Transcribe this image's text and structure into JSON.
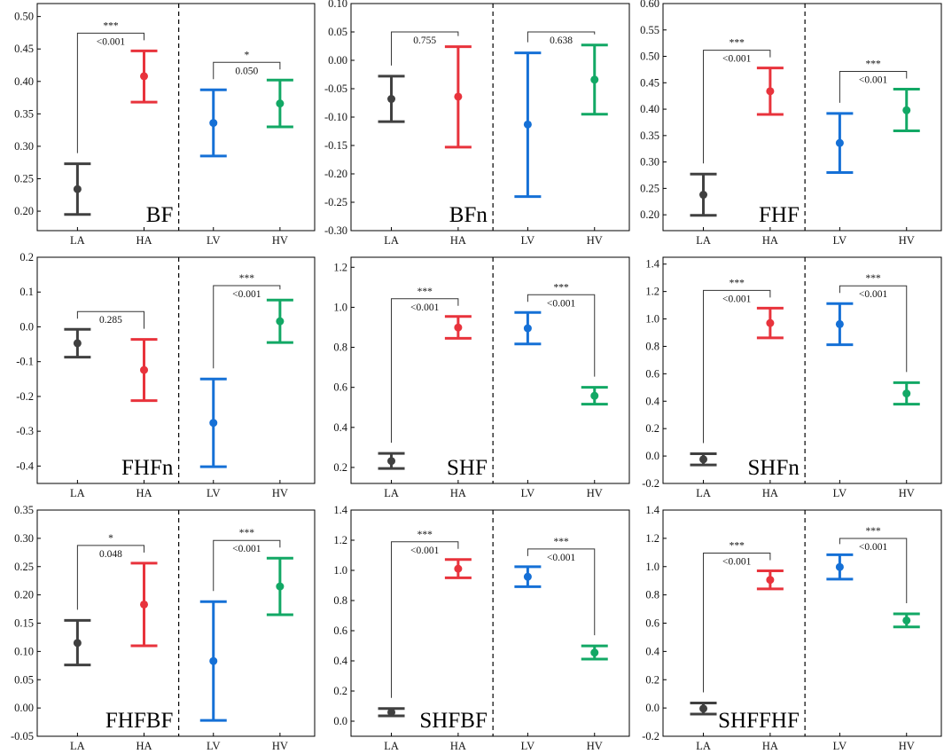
{
  "chart_data": [
    {
      "type": "errorbar",
      "label": "BF",
      "ylim": [
        0.17,
        0.52
      ],
      "ticks": [
        "0.20",
        "0.25",
        "0.30",
        "0.35",
        "0.40",
        "0.45",
        "0.50"
      ],
      "categories": [
        "LA",
        "HA",
        "LV",
        "HV"
      ],
      "points": [
        {
          "category": "LA",
          "mean": 0.234,
          "lower": 0.195,
          "upper": 0.273
        },
        {
          "category": "HA",
          "mean": 0.408,
          "lower": 0.368,
          "upper": 0.447
        },
        {
          "category": "LV",
          "mean": 0.336,
          "lower": 0.285,
          "upper": 0.387
        },
        {
          "category": "HV",
          "mean": 0.366,
          "lower": 0.33,
          "upper": 0.402
        }
      ],
      "comparisons": [
        {
          "pair": [
            "LA",
            "HA"
          ],
          "stars": "***",
          "p": "<0.001"
        },
        {
          "pair": [
            "LV",
            "HV"
          ],
          "stars": "*",
          "p": "0.050"
        }
      ]
    },
    {
      "type": "errorbar",
      "label": "BFn",
      "ylim": [
        -0.3,
        0.1
      ],
      "ticks": [
        "-0.30",
        "-0.25",
        "-0.20",
        "-0.15",
        "-0.10",
        "-0.05",
        "0.00",
        "0.05",
        "0.10"
      ],
      "categories": [
        "LA",
        "HA",
        "LV",
        "HV"
      ],
      "points": [
        {
          "category": "LA",
          "mean": -0.068,
          "lower": -0.108,
          "upper": -0.028
        },
        {
          "category": "HA",
          "mean": -0.064,
          "lower": -0.153,
          "upper": 0.024
        },
        {
          "category": "LV",
          "mean": -0.113,
          "lower": -0.24,
          "upper": 0.013
        },
        {
          "category": "HV",
          "mean": -0.034,
          "lower": -0.095,
          "upper": 0.027
        }
      ],
      "comparisons": [
        {
          "pair": [
            "LA",
            "HA"
          ],
          "stars": "",
          "p": "0.755"
        },
        {
          "pair": [
            "LV",
            "HV"
          ],
          "stars": "",
          "p": "0.638"
        }
      ]
    },
    {
      "type": "errorbar",
      "label": "FHF",
      "ylim": [
        0.17,
        0.6
      ],
      "ticks": [
        "0.20",
        "0.25",
        "0.30",
        "0.35",
        "0.40",
        "0.45",
        "0.50",
        "0.55",
        "0.60"
      ],
      "categories": [
        "LA",
        "HA",
        "LV",
        "HV"
      ],
      "points": [
        {
          "category": "LA",
          "mean": 0.238,
          "lower": 0.199,
          "upper": 0.277
        },
        {
          "category": "HA",
          "mean": 0.434,
          "lower": 0.39,
          "upper": 0.478
        },
        {
          "category": "LV",
          "mean": 0.336,
          "lower": 0.28,
          "upper": 0.392
        },
        {
          "category": "HV",
          "mean": 0.398,
          "lower": 0.359,
          "upper": 0.438
        }
      ],
      "comparisons": [
        {
          "pair": [
            "LA",
            "HA"
          ],
          "stars": "***",
          "p": "<0.001"
        },
        {
          "pair": [
            "LV",
            "HV"
          ],
          "stars": "***",
          "p": "<0.001"
        }
      ]
    },
    {
      "type": "errorbar",
      "label": "FHFn",
      "ylim": [
        -0.45,
        0.2
      ],
      "ticks": [
        "-0.4",
        "-0.3",
        "-0.2",
        "-0.1",
        "0.0",
        "0.1",
        "0.2"
      ],
      "categories": [
        "LA",
        "HA",
        "LV",
        "HV"
      ],
      "points": [
        {
          "category": "LA",
          "mean": -0.047,
          "lower": -0.087,
          "upper": -0.007
        },
        {
          "category": "HA",
          "mean": -0.124,
          "lower": -0.212,
          "upper": -0.036
        },
        {
          "category": "LV",
          "mean": -0.276,
          "lower": -0.402,
          "upper": -0.15
        },
        {
          "category": "HV",
          "mean": 0.016,
          "lower": -0.045,
          "upper": 0.077
        }
      ],
      "comparisons": [
        {
          "pair": [
            "LA",
            "HA"
          ],
          "stars": "",
          "p": "0.285"
        },
        {
          "pair": [
            "LV",
            "HV"
          ],
          "stars": "***",
          "p": "<0.001"
        }
      ]
    },
    {
      "type": "errorbar",
      "label": "SHF",
      "ylim": [
        0.12,
        1.25
      ],
      "ticks": [
        "0.2",
        "0.4",
        "0.6",
        "0.8",
        "1.0",
        "1.2"
      ],
      "categories": [
        "LA",
        "HA",
        "LV",
        "HV"
      ],
      "points": [
        {
          "category": "LA",
          "mean": 0.232,
          "lower": 0.195,
          "upper": 0.27
        },
        {
          "category": "HA",
          "mean": 0.899,
          "lower": 0.845,
          "upper": 0.954
        },
        {
          "category": "LV",
          "mean": 0.895,
          "lower": 0.817,
          "upper": 0.974
        },
        {
          "category": "HV",
          "mean": 0.558,
          "lower": 0.516,
          "upper": 0.6
        }
      ],
      "comparisons": [
        {
          "pair": [
            "LA",
            "HA"
          ],
          "stars": "***",
          "p": "<0.001"
        },
        {
          "pair": [
            "LV",
            "HV"
          ],
          "stars": "***",
          "p": "<0.001"
        }
      ]
    },
    {
      "type": "errorbar",
      "label": "SHFn",
      "ylim": [
        -0.2,
        1.45
      ],
      "ticks": [
        "-0.2",
        "0.0",
        "0.2",
        "0.4",
        "0.6",
        "0.8",
        "1.0",
        "1.2",
        "1.4"
      ],
      "categories": [
        "LA",
        "HA",
        "LV",
        "HV"
      ],
      "points": [
        {
          "category": "LA",
          "mean": -0.024,
          "lower": -0.065,
          "upper": 0.017
        },
        {
          "category": "HA",
          "mean": 0.97,
          "lower": 0.862,
          "upper": 1.079
        },
        {
          "category": "LV",
          "mean": 0.962,
          "lower": 0.812,
          "upper": 1.112
        },
        {
          "category": "HV",
          "mean": 0.456,
          "lower": 0.378,
          "upper": 0.535
        }
      ],
      "comparisons": [
        {
          "pair": [
            "LA",
            "HA"
          ],
          "stars": "***",
          "p": "<0.001"
        },
        {
          "pair": [
            "LV",
            "HV"
          ],
          "stars": "***",
          "p": "<0.001"
        }
      ]
    },
    {
      "type": "errorbar",
      "label": "FHFBF",
      "ylim": [
        -0.05,
        0.35
      ],
      "ticks": [
        "-0.05",
        "0.00",
        "0.05",
        "0.10",
        "0.15",
        "0.20",
        "0.25",
        "0.30",
        "0.35"
      ],
      "categories": [
        "LA",
        "HA",
        "LV",
        "HV"
      ],
      "points": [
        {
          "category": "LA",
          "mean": 0.115,
          "lower": 0.076,
          "upper": 0.155
        },
        {
          "category": "HA",
          "mean": 0.183,
          "lower": 0.11,
          "upper": 0.256
        },
        {
          "category": "LV",
          "mean": 0.083,
          "lower": -0.022,
          "upper": 0.188
        },
        {
          "category": "HV",
          "mean": 0.215,
          "lower": 0.165,
          "upper": 0.265
        }
      ],
      "comparisons": [
        {
          "pair": [
            "LA",
            "HA"
          ],
          "stars": "*",
          "p": "0.048"
        },
        {
          "pair": [
            "LV",
            "HV"
          ],
          "stars": "***",
          "p": "<0.001"
        }
      ]
    },
    {
      "type": "errorbar",
      "label": "SHFBF",
      "ylim": [
        -0.1,
        1.4
      ],
      "ticks": [
        "0.0",
        "0.2",
        "0.4",
        "0.6",
        "0.8",
        "1.0",
        "1.2",
        "1.4"
      ],
      "categories": [
        "LA",
        "HA",
        "LV",
        "HV"
      ],
      "points": [
        {
          "category": "LA",
          "mean": 0.059,
          "lower": 0.035,
          "upper": 0.084
        },
        {
          "category": "HA",
          "mean": 1.011,
          "lower": 0.951,
          "upper": 1.072
        },
        {
          "category": "LV",
          "mean": 0.958,
          "lower": 0.892,
          "upper": 1.024
        },
        {
          "category": "HV",
          "mean": 0.455,
          "lower": 0.412,
          "upper": 0.499
        }
      ],
      "comparisons": [
        {
          "pair": [
            "LA",
            "HA"
          ],
          "stars": "***",
          "p": "<0.001"
        },
        {
          "pair": [
            "LV",
            "HV"
          ],
          "stars": "***",
          "p": "<0.001"
        }
      ]
    },
    {
      "type": "errorbar",
      "label": "SHFFHF",
      "ylim": [
        -0.2,
        1.4
      ],
      "ticks": [
        "-0.2",
        "0.0",
        "0.2",
        "0.4",
        "0.6",
        "0.8",
        "1.0",
        "1.2",
        "1.4"
      ],
      "categories": [
        "LA",
        "HA",
        "LV",
        "HV"
      ],
      "points": [
        {
          "category": "LA",
          "mean": -0.004,
          "lower": -0.043,
          "upper": 0.035
        },
        {
          "category": "HA",
          "mean": 0.906,
          "lower": 0.842,
          "upper": 0.97
        },
        {
          "category": "LV",
          "mean": 0.997,
          "lower": 0.911,
          "upper": 1.084
        },
        {
          "category": "HV",
          "mean": 0.619,
          "lower": 0.573,
          "upper": 0.666
        }
      ],
      "comparisons": [
        {
          "pair": [
            "LA",
            "HA"
          ],
          "stars": "***",
          "p": "<0.001"
        },
        {
          "pair": [
            "LV",
            "HV"
          ],
          "stars": "***",
          "p": "<0.001"
        }
      ]
    }
  ],
  "colors": {
    "LA": "#404040",
    "HA": "#e8333c",
    "LV": "#1570d6",
    "HV": "#12a865",
    "axis": "#000000"
  }
}
